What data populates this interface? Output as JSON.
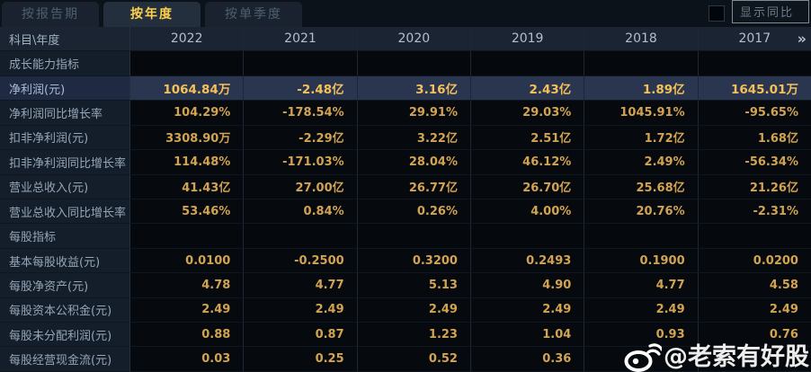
{
  "tabs": {
    "items": [
      {
        "label": "按报告期",
        "active": false
      },
      {
        "label": "按年度",
        "active": true
      },
      {
        "label": "按单季度",
        "active": false
      }
    ]
  },
  "controls": {
    "show_yoy_label": "显示同比",
    "checkbox_checked": false
  },
  "table": {
    "header": {
      "first": "科目\\年度",
      "years": [
        "2022",
        "2021",
        "2020",
        "2019",
        "2018",
        "2017"
      ],
      "more_icon": "»"
    },
    "rows": [
      {
        "type": "section",
        "label": "成长能力指标",
        "values": [
          "",
          "",
          "",
          "",
          "",
          ""
        ]
      },
      {
        "type": "data",
        "highlight": true,
        "label": "净利润(元)",
        "values": [
          "1064.84万",
          "-2.48亿",
          "3.16亿",
          "2.43亿",
          "1.89亿",
          "1645.01万"
        ]
      },
      {
        "type": "data",
        "highlight": false,
        "label": "净利润同比增长率",
        "values": [
          "104.29%",
          "-178.54%",
          "29.91%",
          "29.03%",
          "1045.91%",
          "-95.65%"
        ]
      },
      {
        "type": "data",
        "highlight": false,
        "label": "扣非净利润(元)",
        "values": [
          "3308.90万",
          "-2.29亿",
          "3.22亿",
          "2.51亿",
          "1.72亿",
          "1.68亿"
        ]
      },
      {
        "type": "data",
        "highlight": false,
        "label": "扣非净利润同比增长率",
        "values": [
          "114.48%",
          "-171.03%",
          "28.04%",
          "46.12%",
          "2.49%",
          "-56.34%"
        ]
      },
      {
        "type": "data",
        "highlight": false,
        "label": "营业总收入(元)",
        "values": [
          "41.43亿",
          "27.00亿",
          "26.77亿",
          "26.70亿",
          "25.68亿",
          "21.26亿"
        ]
      },
      {
        "type": "data",
        "highlight": false,
        "label": "营业总收入同比增长率",
        "values": [
          "53.46%",
          "0.84%",
          "0.26%",
          "4.00%",
          "20.76%",
          "-2.31%"
        ]
      },
      {
        "type": "section",
        "label": "每股指标",
        "values": [
          "",
          "",
          "",
          "",
          "",
          ""
        ]
      },
      {
        "type": "data",
        "highlight": false,
        "label": "基本每股收益(元)",
        "values": [
          "0.0100",
          "-0.2500",
          "0.3200",
          "0.2493",
          "0.1900",
          "0.0200"
        ]
      },
      {
        "type": "data",
        "highlight": false,
        "label": "每股净资产(元)",
        "values": [
          "4.78",
          "4.77",
          "5.13",
          "4.90",
          "4.77",
          "4.58"
        ]
      },
      {
        "type": "data",
        "highlight": false,
        "label": "每股资本公积金(元)",
        "values": [
          "2.49",
          "2.49",
          "2.49",
          "2.49",
          "2.49",
          "2.49"
        ]
      },
      {
        "type": "data",
        "highlight": false,
        "label": "每股未分配利润(元)",
        "values": [
          "0.88",
          "0.87",
          "1.23",
          "1.04",
          "0.93",
          "0.76"
        ]
      },
      {
        "type": "data",
        "highlight": false,
        "label": "每股经营现金流(元)",
        "values": [
          "0.03",
          "0.25",
          "0.52",
          "0.36",
          "",
          ""
        ]
      }
    ]
  },
  "watermark": {
    "text": "@老索有好股",
    "icon": "weibo-icon"
  },
  "colors": {
    "accent_gold": "#ffd04a",
    "value_gold": "#d2a352",
    "highlight_row_bg": "#2a3550",
    "header_bg": "#1a2433",
    "label_col_bg": "#141d2a"
  }
}
